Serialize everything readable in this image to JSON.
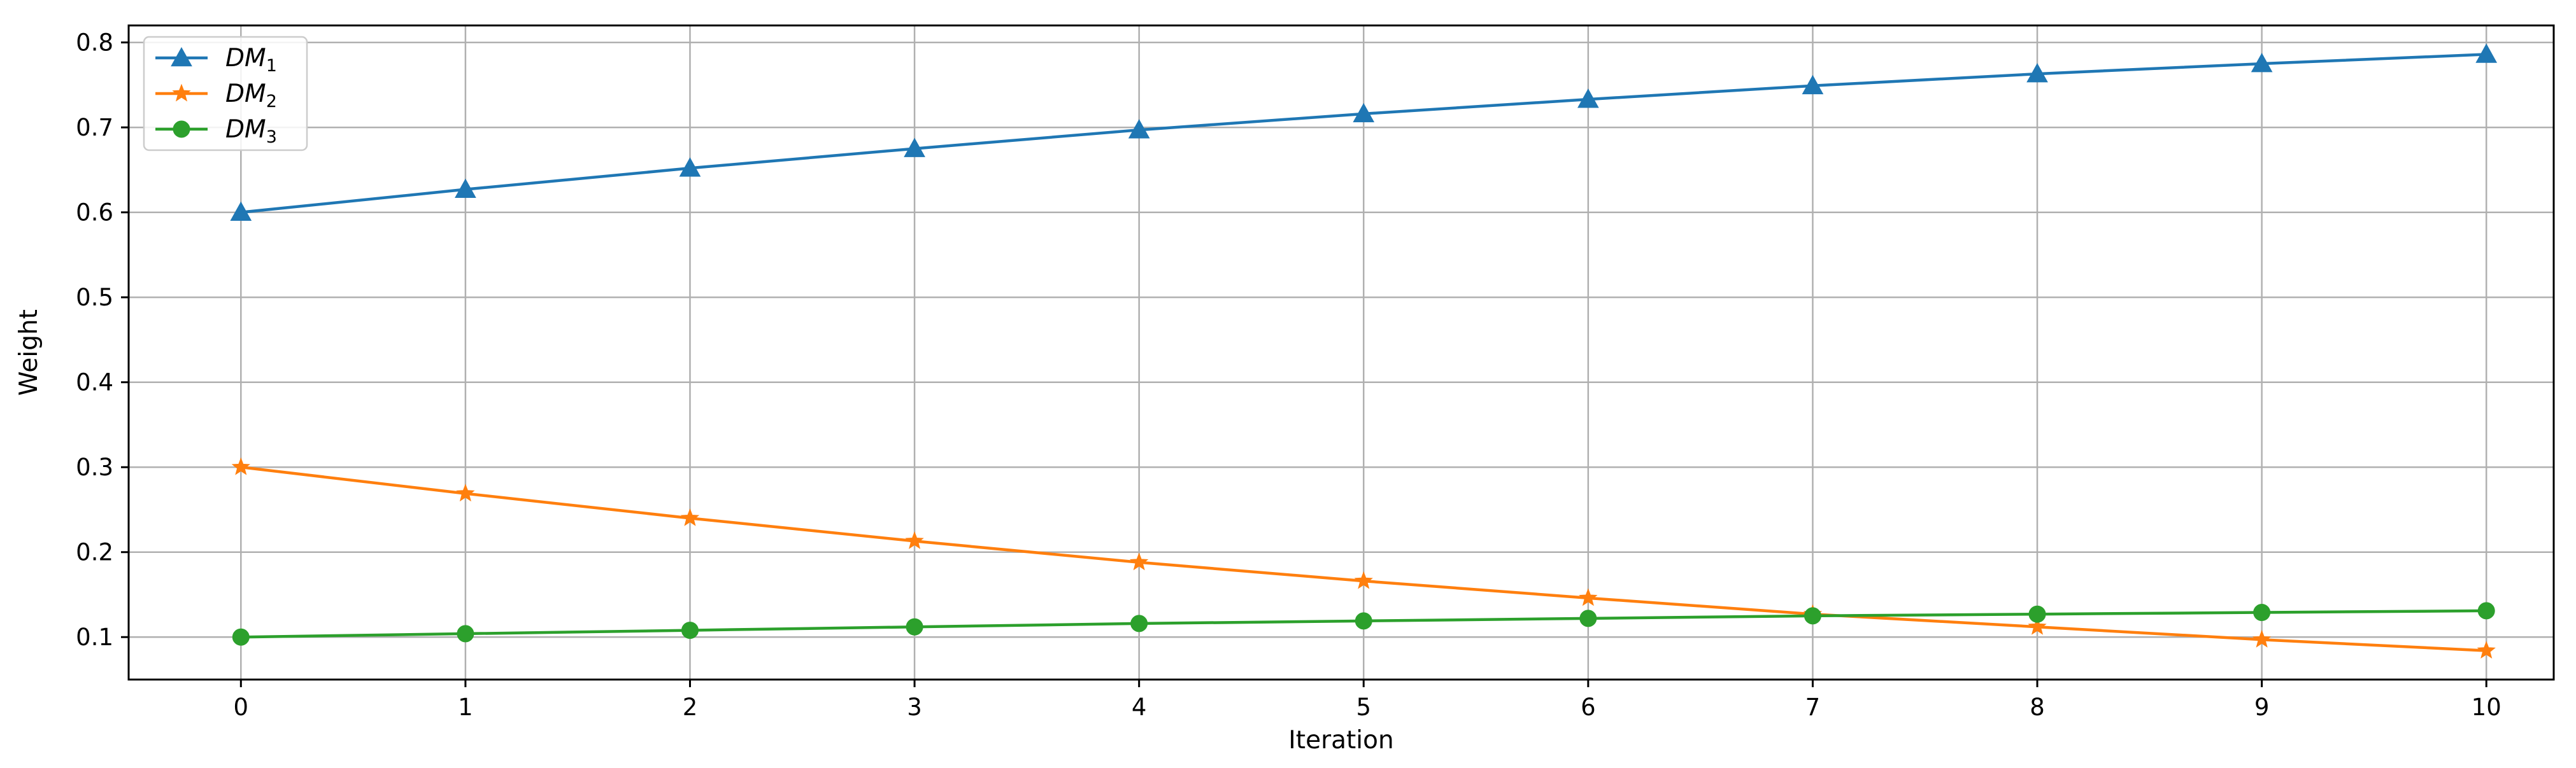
{
  "chart_data": {
    "type": "line",
    "title": "",
    "xlabel": "Iteration",
    "ylabel": "Weight",
    "x": [
      0,
      1,
      2,
      3,
      4,
      5,
      6,
      7,
      8,
      9,
      10
    ],
    "xlim": [
      -0.5,
      10.3
    ],
    "ylim": [
      0.05,
      0.82
    ],
    "x_ticks": [
      0,
      1,
      2,
      3,
      4,
      5,
      6,
      7,
      8,
      9,
      10
    ],
    "y_ticks": [
      0.1,
      0.2,
      0.3,
      0.4,
      0.5,
      0.6,
      0.7,
      0.8
    ],
    "grid": true,
    "legend_position": "top-left",
    "series": [
      {
        "name": "DM1",
        "name_base": "DM",
        "name_sub": "1",
        "color": "#1f77b4",
        "marker": "triangle",
        "values": [
          0.6,
          0.627,
          0.652,
          0.675,
          0.697,
          0.716,
          0.733,
          0.749,
          0.763,
          0.775,
          0.786
        ]
      },
      {
        "name": "DM2",
        "name_base": "DM",
        "name_sub": "2",
        "color": "#ff7f0e",
        "marker": "star",
        "values": [
          0.3,
          0.269,
          0.24,
          0.213,
          0.188,
          0.166,
          0.146,
          0.127,
          0.112,
          0.097,
          0.084
        ]
      },
      {
        "name": "DM3",
        "name_base": "DM",
        "name_sub": "3",
        "color": "#2ca02c",
        "marker": "circle",
        "values": [
          0.1,
          0.104,
          0.108,
          0.112,
          0.116,
          0.119,
          0.122,
          0.125,
          0.127,
          0.129,
          0.131
        ]
      }
    ]
  }
}
